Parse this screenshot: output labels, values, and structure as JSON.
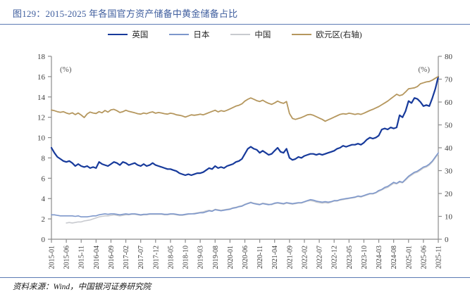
{
  "title": "图129：2015-2025 年各国官方资产储备中黄金储备占比",
  "source_note": "资料来源：Wind，中国银河证券研究院",
  "colors": {
    "title_text": "#3F5E9E",
    "rule_blue": "#5C7BB4",
    "axis_gray": "#8C8C8C",
    "tick_label": "#3C3C3C"
  },
  "chart_data": {
    "type": "line",
    "x_interval": "monthly",
    "x_start": "2015-01",
    "x_end": "2025-11",
    "x_ticks": [
      "2015-01",
      "2015-06",
      "2015-11",
      "2016-04",
      "2016-09",
      "2017-02",
      "2017-07",
      "2017-12",
      "2018-05",
      "2018-10",
      "2019-03",
      "2019-08",
      "2020-01",
      "2020-06",
      "2020-11",
      "2021-04",
      "2021-09",
      "2022-02",
      "2022-07",
      "2022-12",
      "2023-05",
      "2023-10",
      "2024-03",
      "2024-08",
      "2025-01",
      "2025-06",
      "2025-11"
    ],
    "left_axis": {
      "label": "(%)",
      "min": 0,
      "max": 18,
      "tick_step": 2
    },
    "right_axis": {
      "label": "(%)",
      "min": 0,
      "max": 80,
      "tick_step": 10
    },
    "grid": false,
    "legend_position": "top",
    "series": [
      {
        "name": "中国",
        "axis": "left",
        "color": "#C8CACF",
        "stroke_width": 1.6,
        "values": [
          null,
          null,
          null,
          null,
          null,
          1.6,
          1.65,
          1.6,
          1.65,
          1.7,
          1.7,
          1.8,
          1.85,
          1.9,
          2.0,
          2.1,
          2.2,
          2.25,
          2.3,
          2.3,
          2.35,
          2.4,
          2.35,
          2.3,
          2.35,
          2.4,
          2.4,
          2.45,
          2.45,
          2.4,
          2.35,
          2.4,
          2.4,
          2.45,
          2.45,
          2.45,
          2.45,
          2.45,
          2.4,
          2.4,
          2.45,
          2.45,
          2.4,
          2.35,
          2.35,
          2.4,
          2.45,
          2.5,
          2.55,
          2.6,
          2.65,
          2.7,
          2.8,
          2.85,
          2.8,
          2.95,
          2.9,
          2.85,
          2.9,
          2.95,
          3.0,
          3.1,
          3.15,
          3.25,
          3.3,
          3.45,
          3.55,
          3.65,
          3.55,
          3.5,
          3.45,
          3.55,
          3.5,
          3.45,
          3.4,
          3.5,
          3.55,
          3.5,
          3.45,
          3.55,
          3.5,
          3.45,
          3.5,
          3.55,
          3.55,
          3.65,
          3.75,
          3.8,
          3.75,
          3.65,
          3.6,
          3.55,
          3.6,
          3.55,
          3.65,
          3.75,
          3.75,
          3.85,
          3.9,
          3.95,
          4.0,
          4.05,
          4.1,
          4.2,
          4.15,
          4.25,
          4.35,
          4.45,
          4.45,
          4.55,
          4.7,
          4.85,
          5.0,
          5.1,
          5.3,
          5.5,
          5.45,
          5.6,
          5.55,
          5.8,
          6.1,
          6.3,
          6.5,
          6.6,
          6.8,
          7.0,
          7.1,
          7.3,
          7.6,
          8.0,
          8.4
        ]
      },
      {
        "name": "日本",
        "axis": "left",
        "color": "#7D97CB",
        "stroke_width": 1.6,
        "values": [
          2.4,
          2.4,
          2.35,
          2.3,
          2.3,
          2.3,
          2.3,
          2.3,
          2.25,
          2.3,
          2.2,
          2.2,
          2.2,
          2.25,
          2.3,
          2.3,
          2.4,
          2.45,
          2.5,
          2.45,
          2.5,
          2.5,
          2.45,
          2.4,
          2.45,
          2.5,
          2.45,
          2.5,
          2.5,
          2.45,
          2.4,
          2.45,
          2.45,
          2.5,
          2.5,
          2.5,
          2.5,
          2.5,
          2.45,
          2.45,
          2.5,
          2.5,
          2.45,
          2.4,
          2.4,
          2.45,
          2.5,
          2.5,
          2.5,
          2.55,
          2.6,
          2.6,
          2.7,
          2.8,
          2.75,
          2.9,
          2.85,
          2.8,
          2.85,
          2.9,
          2.95,
          3.05,
          3.1,
          3.2,
          3.25,
          3.4,
          3.5,
          3.6,
          3.5,
          3.45,
          3.4,
          3.5,
          3.45,
          3.4,
          3.45,
          3.55,
          3.6,
          3.55,
          3.5,
          3.6,
          3.55,
          3.5,
          3.55,
          3.6,
          3.6,
          3.7,
          3.8,
          3.9,
          3.85,
          3.75,
          3.7,
          3.65,
          3.7,
          3.65,
          3.7,
          3.8,
          3.8,
          3.9,
          3.95,
          4.0,
          4.05,
          4.1,
          4.15,
          4.25,
          4.2,
          4.3,
          4.4,
          4.5,
          4.5,
          4.6,
          4.8,
          4.9,
          5.1,
          5.2,
          5.4,
          5.6,
          5.5,
          5.7,
          5.6,
          5.9,
          6.2,
          6.4,
          6.6,
          6.7,
          6.9,
          7.1,
          7.2,
          7.4,
          7.7,
          8.1,
          8.5
        ]
      },
      {
        "name": "英国",
        "axis": "left",
        "color": "#173A9B",
        "stroke_width": 2.2,
        "values": [
          9.0,
          8.5,
          8.1,
          7.9,
          7.7,
          7.6,
          7.7,
          7.5,
          7.2,
          7.4,
          7.2,
          7.1,
          7.2,
          7.0,
          7.1,
          7.0,
          7.6,
          7.4,
          7.3,
          7.2,
          7.4,
          7.6,
          7.5,
          7.3,
          7.6,
          7.5,
          7.3,
          7.4,
          7.5,
          7.3,
          7.2,
          7.4,
          7.2,
          7.3,
          7.5,
          7.3,
          7.2,
          7.1,
          7.0,
          6.9,
          6.9,
          6.8,
          6.7,
          6.5,
          6.4,
          6.3,
          6.4,
          6.3,
          6.4,
          6.5,
          6.5,
          6.6,
          6.8,
          7.0,
          6.9,
          7.2,
          7.0,
          7.1,
          7.0,
          7.2,
          7.3,
          7.4,
          7.6,
          7.7,
          7.9,
          8.4,
          8.9,
          9.1,
          8.9,
          8.8,
          8.5,
          8.7,
          8.5,
          8.3,
          8.4,
          8.7,
          9.0,
          8.6,
          8.5,
          8.9,
          8.0,
          7.8,
          7.9,
          8.1,
          8.0,
          8.2,
          8.3,
          8.4,
          8.4,
          8.3,
          8.4,
          8.3,
          8.4,
          8.5,
          8.6,
          8.7,
          8.9,
          9.0,
          9.2,
          9.1,
          9.2,
          9.3,
          9.3,
          9.4,
          9.3,
          9.5,
          9.8,
          10.0,
          9.9,
          10.0,
          10.2,
          10.8,
          10.9,
          10.8,
          11.0,
          10.9,
          11.0,
          12.2,
          12.0,
          12.6,
          13.6,
          13.4,
          13.9,
          13.8,
          13.5,
          13.1,
          13.2,
          13.1,
          13.9,
          14.8,
          16.0
        ]
      },
      {
        "name": "欧元区(右轴)",
        "axis": "right",
        "color": "#B5975E",
        "stroke_width": 1.8,
        "values": [
          56.5,
          56.2,
          55.8,
          55.5,
          55.8,
          55.2,
          54.8,
          55.3,
          54.5,
          55.2,
          54.3,
          53.2,
          54.8,
          55.6,
          55.2,
          55.0,
          55.8,
          55.3,
          56.3,
          55.6,
          56.6,
          56.8,
          56.2,
          55.4,
          55.8,
          56.4,
          55.9,
          55.6,
          55.3,
          54.9,
          54.7,
          55.2,
          54.9,
          55.4,
          55.7,
          55.1,
          55.4,
          55.2,
          54.9,
          54.7,
          55.1,
          54.9,
          54.4,
          54.2,
          53.9,
          53.4,
          53.9,
          54.4,
          54.2,
          54.4,
          54.7,
          54.4,
          54.9,
          55.4,
          55.9,
          56.4,
          55.7,
          56.2,
          55.9,
          56.4,
          57.0,
          57.6,
          58.2,
          58.6,
          59.2,
          60.4,
          61.2,
          61.8,
          61.2,
          60.6,
          60.2,
          60.8,
          60.0,
          59.4,
          59.0,
          59.6,
          60.4,
          59.8,
          59.4,
          60.2,
          55.0,
          52.8,
          52.4,
          52.8,
          53.2,
          53.8,
          54.4,
          54.6,
          54.2,
          53.6,
          53.0,
          52.4,
          51.6,
          52.2,
          52.8,
          53.4,
          54.0,
          54.6,
          54.9,
          54.7,
          55.1,
          54.9,
          54.6,
          54.9,
          54.6,
          55.1,
          55.7,
          56.3,
          56.8,
          57.4,
          58.0,
          58.8,
          59.6,
          60.4,
          61.4,
          62.4,
          63.4,
          62.8,
          63.2,
          64.4,
          65.8,
          66.0,
          66.2,
          66.8,
          68.0,
          68.4,
          68.8,
          69.0,
          69.6,
          70.4,
          71.2
        ]
      }
    ],
    "legend_order": [
      2,
      1,
      0,
      3
    ]
  }
}
